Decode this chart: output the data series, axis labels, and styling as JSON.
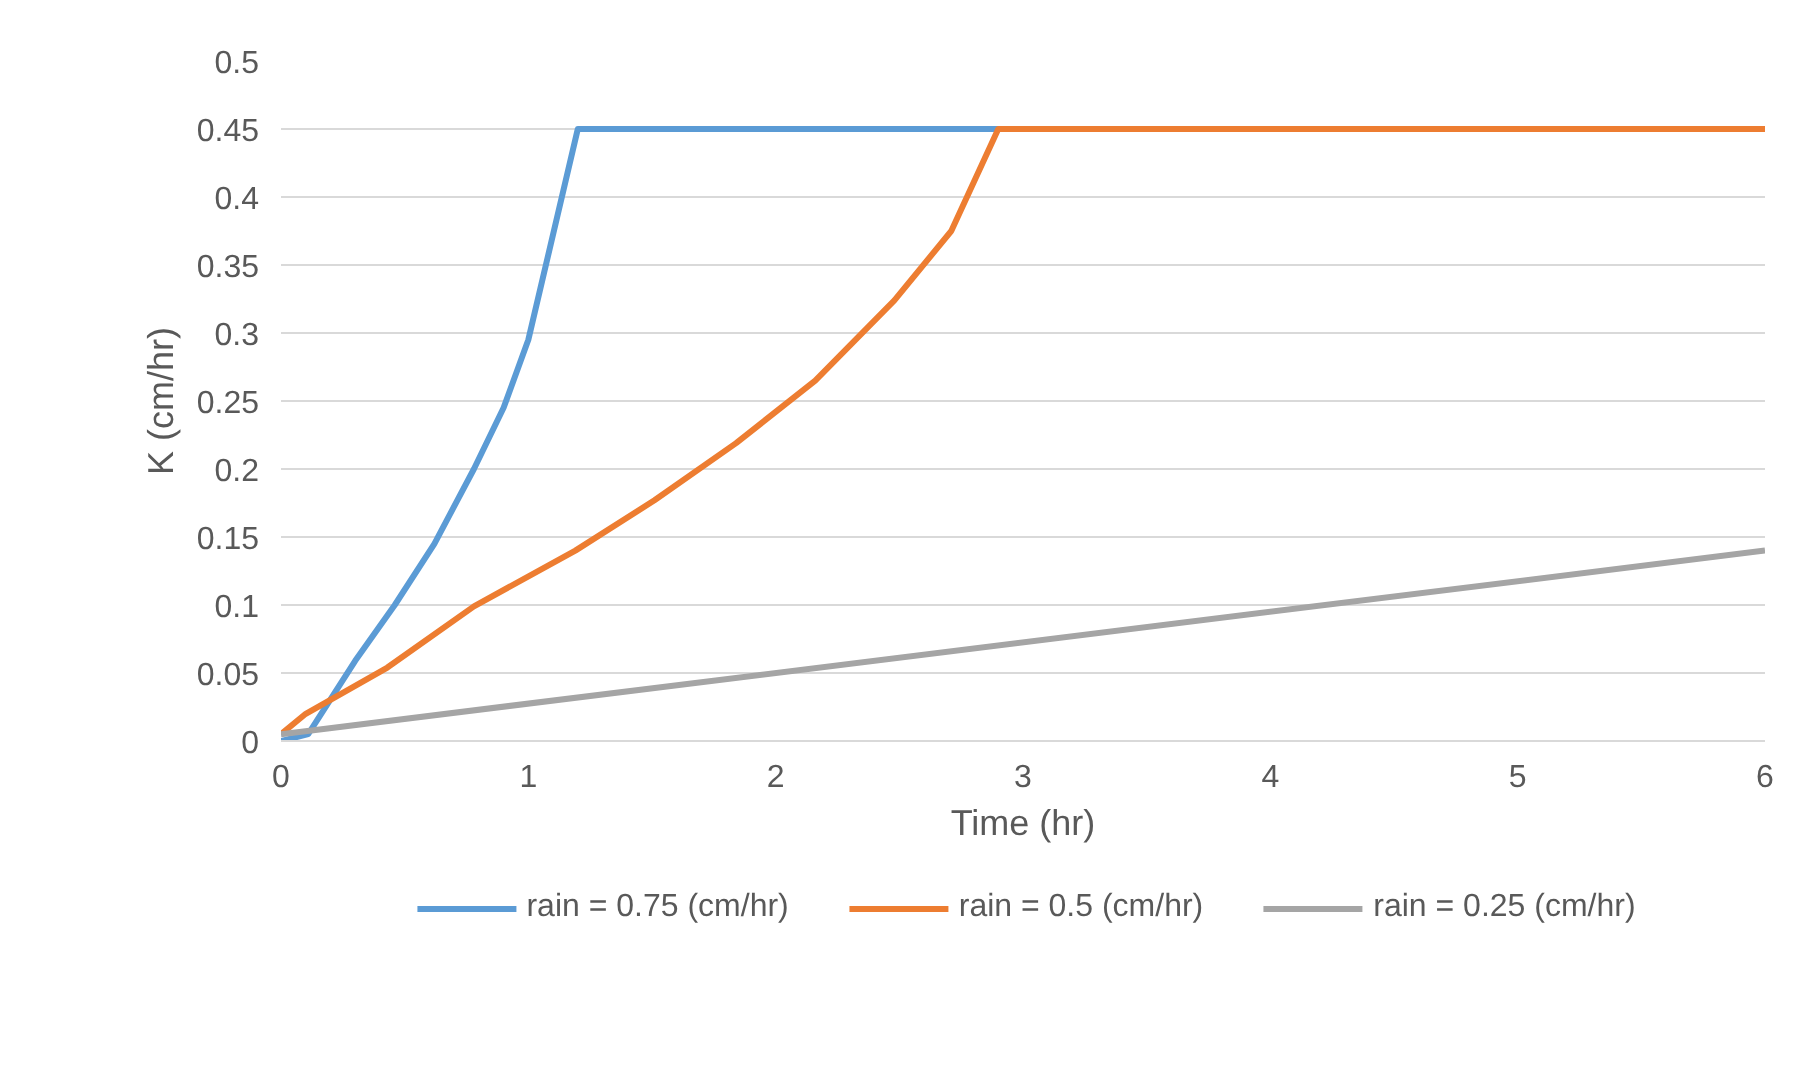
{
  "chart_data": {
    "type": "line",
    "xlabel": "Time (hr)",
    "ylabel": "K (cm/hr)",
    "xlim": [
      0,
      6
    ],
    "xticks": [
      0,
      1,
      2,
      3,
      4,
      5,
      6
    ],
    "ylim": [
      0,
      0.5
    ],
    "yticks": [
      0,
      0.05,
      0.1,
      0.15,
      0.2,
      0.25,
      0.3,
      0.35,
      0.4,
      0.45,
      0.5
    ],
    "grid": "y",
    "legend": "bottom",
    "line_style": "solid",
    "marker": "none",
    "series": [
      {
        "name": "rain = 0.75 (cm/hr)",
        "color": "#5b9bd5",
        "x": [
          0,
          0.11,
          0.3,
          0.46,
          0.62,
          0.78,
          0.9,
          1.0,
          1.2,
          2.9
        ],
        "values": [
          0,
          0.005,
          0.059,
          0.1,
          0.145,
          0.2,
          0.245,
          0.295,
          0.45,
          0.45
        ]
      },
      {
        "name": "rain = 0.5 (cm/hr)",
        "color": "#ed7d31",
        "x": [
          0,
          0.1,
          0.43,
          0.78,
          1.19,
          1.51,
          1.84,
          2.16,
          2.48,
          2.71,
          2.9,
          6
        ],
        "values": [
          0.005,
          0.02,
          0.054,
          0.099,
          0.14,
          0.177,
          0.219,
          0.265,
          0.324,
          0.375,
          0.45,
          0.45
        ]
      },
      {
        "name": "rain = 0.25 (cm/hr)",
        "color": "#a5a5a5",
        "x": [
          0,
          6
        ],
        "values": [
          0.005,
          0.14
        ]
      }
    ]
  }
}
